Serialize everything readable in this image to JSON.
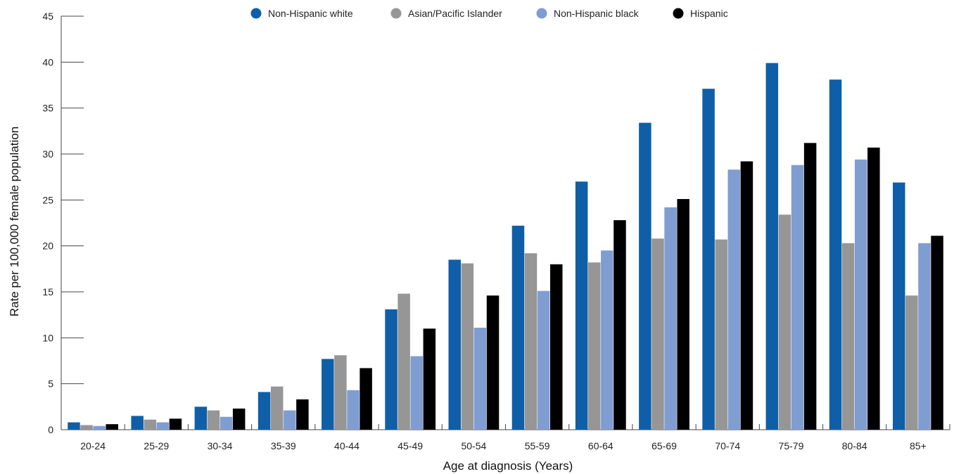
{
  "chart_data": {
    "type": "bar",
    "title": "",
    "xlabel": "Age at diagnosis (Years)",
    "ylabel": "Rate per 100,000 female population",
    "ylim": [
      0,
      45
    ],
    "yticks": [
      0,
      5,
      10,
      15,
      20,
      25,
      30,
      35,
      40,
      45
    ],
    "grid": false,
    "legend_position": "top-center",
    "categories": [
      "20-24",
      "25-29",
      "30-34",
      "35-39",
      "40-44",
      "45-49",
      "50-54",
      "55-59",
      "60-64",
      "65-69",
      "70-74",
      "75-79",
      "80-84",
      "85+"
    ],
    "series": [
      {
        "name": "Non-Hispanic white",
        "color": "#0f5fa8",
        "values": [
          0.8,
          1.5,
          2.5,
          4.1,
          7.7,
          13.1,
          18.5,
          22.2,
          27.0,
          33.4,
          37.1,
          39.9,
          38.1,
          26.9
        ]
      },
      {
        "name": "Asian/Pacific Islander",
        "color": "#969696",
        "values": [
          0.5,
          1.1,
          2.1,
          4.7,
          8.1,
          14.8,
          18.1,
          19.2,
          18.2,
          20.8,
          20.7,
          23.4,
          20.3,
          14.6
        ]
      },
      {
        "name": "Non-Hispanic black",
        "color": "#7f9dd1",
        "values": [
          0.4,
          0.8,
          1.4,
          2.1,
          4.3,
          8.0,
          11.1,
          15.1,
          19.5,
          24.2,
          28.3,
          28.8,
          29.4,
          20.3
        ]
      },
      {
        "name": "Hispanic",
        "color": "#000000",
        "values": [
          0.6,
          1.2,
          2.3,
          3.3,
          6.7,
          11.0,
          14.6,
          18.0,
          22.8,
          25.1,
          29.2,
          31.2,
          30.7,
          21.1
        ]
      }
    ]
  }
}
